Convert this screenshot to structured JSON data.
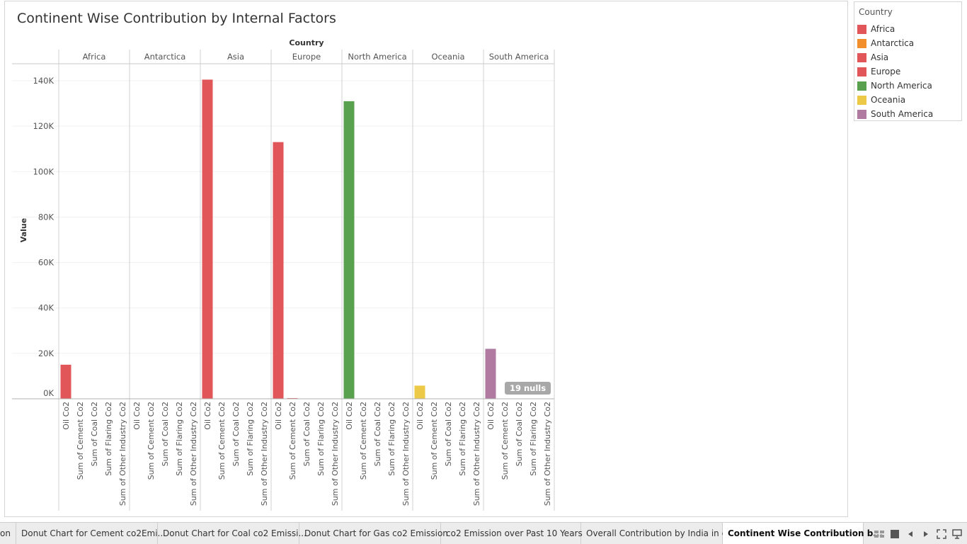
{
  "chart_data": {
    "type": "bar",
    "title": "Continent Wise Contribution by Internal Factors",
    "column_header": "Country",
    "ylabel": "Value",
    "ylim": [
      0,
      147000
    ],
    "yticks": [
      0,
      20000,
      40000,
      60000,
      80000,
      100000,
      120000,
      140000
    ],
    "ytick_labels": [
      "0K",
      "20K",
      "40K",
      "60K",
      "80K",
      "100K",
      "120K",
      "140K"
    ],
    "measures": [
      "Oil Co2",
      "Sum of Cement Co2",
      "Sum of Coal Co2",
      "Sum of Flaring Co2",
      "Sum of Other Industry Co2"
    ],
    "panels": [
      {
        "name": "Africa",
        "color": "#e15759",
        "values": [
          15000,
          0,
          0,
          0,
          0
        ]
      },
      {
        "name": "Antarctica",
        "color": "#f28e2b",
        "values": [
          0,
          0,
          0,
          0,
          0
        ]
      },
      {
        "name": "Asia",
        "color": "#e15759",
        "values": [
          140500,
          0,
          0,
          0,
          0
        ]
      },
      {
        "name": "Europe",
        "color": "#e15759",
        "values": [
          113000,
          300,
          0,
          0,
          0
        ]
      },
      {
        "name": "North America",
        "color": "#59a14f",
        "values": [
          131000,
          0,
          0,
          0,
          0
        ]
      },
      {
        "name": "Oceania",
        "color": "#edc948",
        "values": [
          5800,
          0,
          0,
          0,
          0
        ]
      },
      {
        "name": "South America",
        "color": "#b07aa1",
        "values": [
          22000,
          0,
          0,
          0,
          0
        ]
      }
    ],
    "grid": true,
    "legend_position": "right",
    "nulls_badge": "19 nulls"
  },
  "legend": {
    "title": "Country",
    "items": [
      {
        "label": "Africa",
        "color": "#e15759"
      },
      {
        "label": "Antarctica",
        "color": "#f28e2b"
      },
      {
        "label": "Asia",
        "color": "#e15759"
      },
      {
        "label": "Europe",
        "color": "#e15759"
      },
      {
        "label": "North America",
        "color": "#59a14f"
      },
      {
        "label": "Oceania",
        "color": "#edc948"
      },
      {
        "label": "South America",
        "color": "#b07aa1"
      }
    ]
  },
  "tabs": [
    {
      "label": "on",
      "active": false
    },
    {
      "label": "Donut Chart for Cement co2Emi...",
      "active": false
    },
    {
      "label": "Donut Chart for Coal co2 Emissi...",
      "active": false
    },
    {
      "label": "Donut Chart for Gas co2 Emission",
      "active": false
    },
    {
      "label": "co2 Emission over Past 10 Years",
      "active": false
    },
    {
      "label": "Overall Contribution by India in c...",
      "active": false
    },
    {
      "label": "Continent Wise Contribution b...",
      "active": true
    }
  ],
  "nav_icons": [
    "grid-view-icon",
    "filmstrip-icon",
    "previous-sheet-icon",
    "next-sheet-icon",
    "fit-screen-icon",
    "presentation-mode-icon"
  ]
}
